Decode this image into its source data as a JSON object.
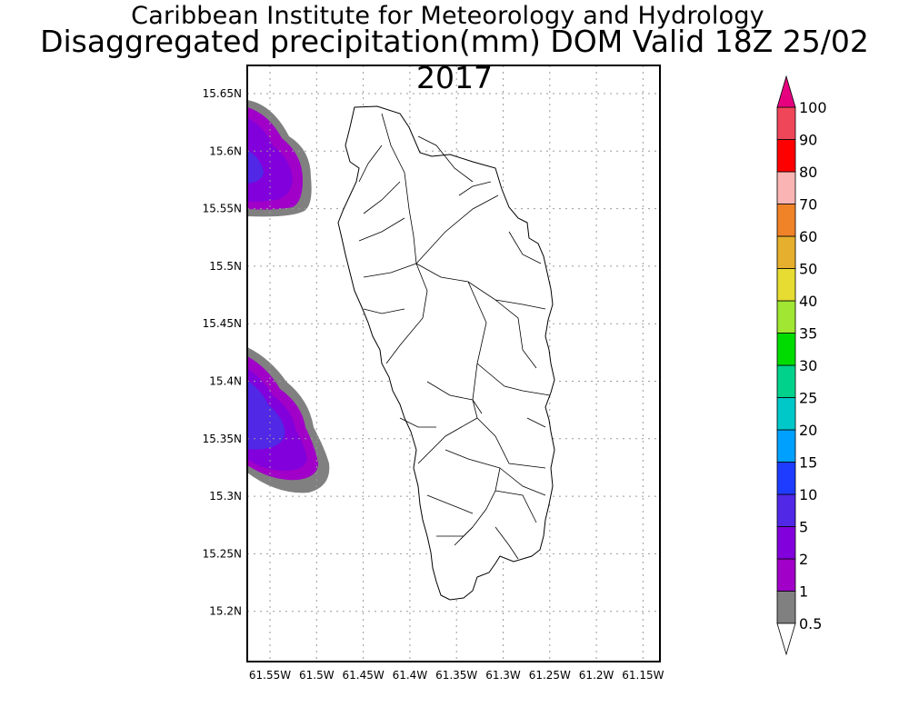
{
  "header": {
    "title": "Caribbean Institute for Meteorology and Hydrology",
    "subtitle": "Disaggregated precipitation(mm) DOM Valid 18Z 25/02 2017"
  },
  "axes": {
    "lat_labels": [
      "15.65N",
      "15.6N",
      "15.55N",
      "15.5N",
      "15.45N",
      "15.4N",
      "15.35N",
      "15.3N",
      "15.25N",
      "15.2N"
    ],
    "lon_labels": [
      "61.55W",
      "61.5W",
      "61.45W",
      "61.4W",
      "61.35W",
      "61.3W",
      "61.25W",
      "61.2W",
      "61.15W"
    ]
  },
  "colorbar": {
    "levels": [
      "0.5",
      "1",
      "2",
      "5",
      "10",
      "15",
      "20",
      "25",
      "30",
      "35",
      "40",
      "50",
      "60",
      "70",
      "80",
      "90",
      "100"
    ],
    "colors": [
      "#808080",
      "#a000c8",
      "#8200dc",
      "#5028e6",
      "#1e3cff",
      "#00a0ff",
      "#00c8c8",
      "#00d28c",
      "#00dc00",
      "#a0e632",
      "#e6dc32",
      "#e6af2d",
      "#f08228",
      "#fab4b4",
      "#ff0000",
      "#f0465a",
      "#e6007f"
    ],
    "low_cap_color": "#ffffff",
    "high_cap_color": "#e6007f"
  },
  "overlay": {
    "island": "Dominica",
    "outline_color": "#000000",
    "grid": "dotted"
  }
}
